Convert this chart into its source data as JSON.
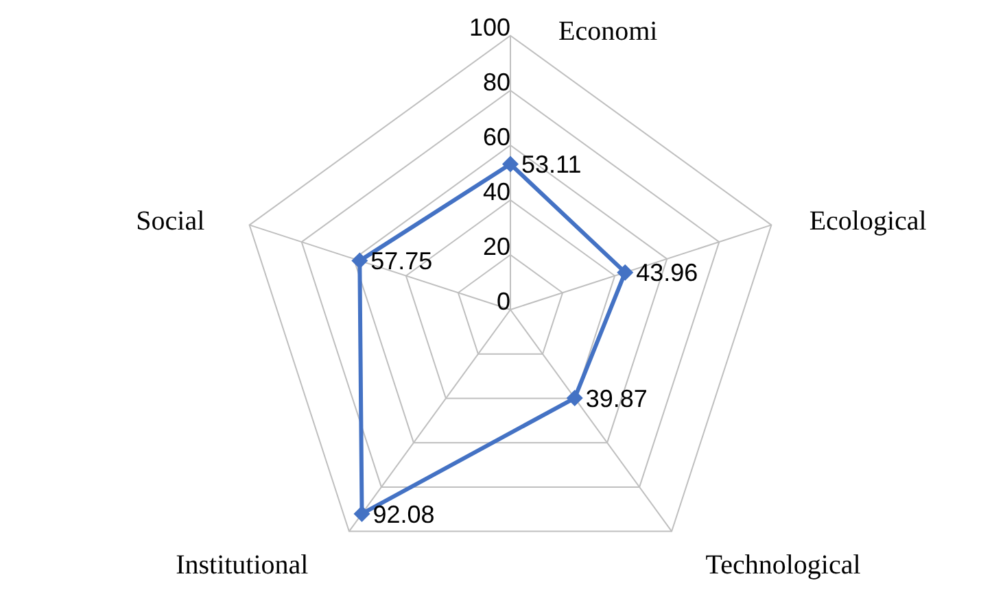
{
  "chart_data": {
    "type": "radar",
    "categories": [
      "Economi",
      "Ecological",
      "Technological",
      "Institutional",
      "Social"
    ],
    "series": [
      {
        "color": "#4472c4",
        "values": [
          53.11,
          43.96,
          39.87,
          92.08,
          57.75
        ]
      }
    ],
    "ylim": [
      0,
      100
    ],
    "yticks": [
      0,
      20,
      40,
      60,
      80,
      100
    ],
    "grid": true,
    "marker": "diamond",
    "data_labels": true,
    "legend": false
  }
}
